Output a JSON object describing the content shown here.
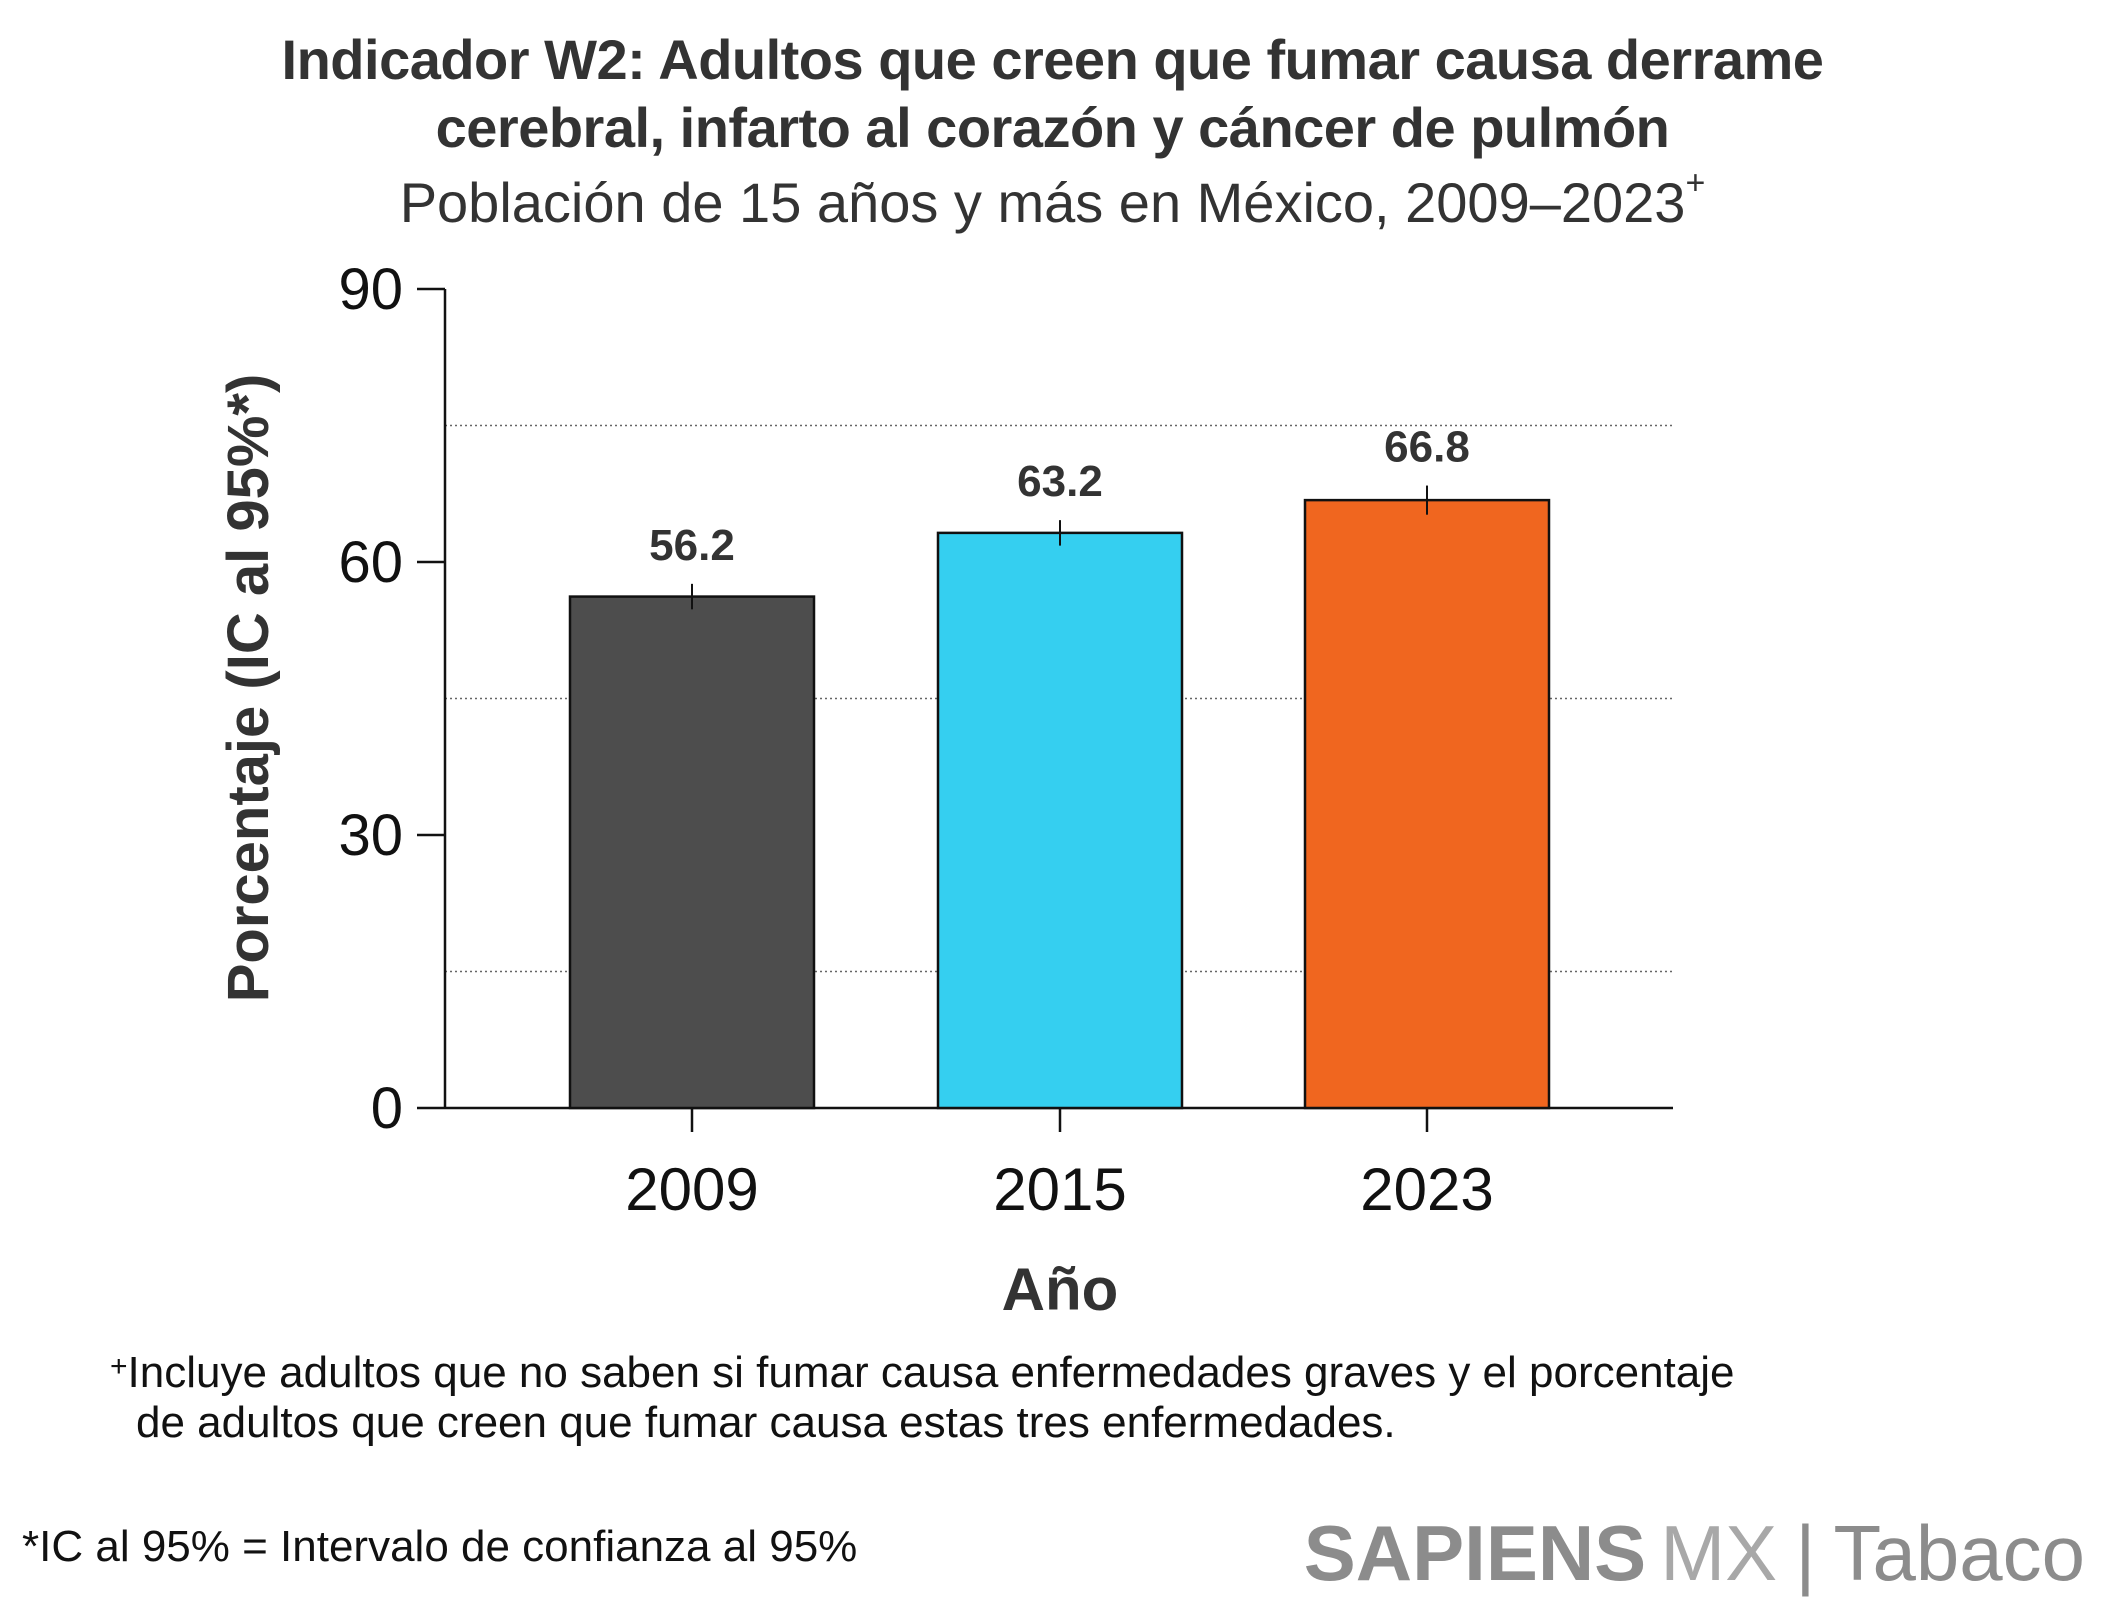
{
  "chart_data": {
    "type": "bar",
    "title": "Indicador W2: Adultos que creen que fumar causa derrame cerebral, infarto al corazón y cáncer de pulmón",
    "title_line1": "Indicador W2: Adultos que creen que fumar causa derrame",
    "title_line2": "cerebral, infarto al corazón y cáncer de pulmón",
    "subtitle": "Población de 15 años y más en México, 2009–2023",
    "subtitle_mark": "+",
    "categories": [
      "2009",
      "2015",
      "2023"
    ],
    "values": [
      56.2,
      63.2,
      66.8
    ],
    "value_labels": [
      "56.2",
      "63.2",
      "66.8"
    ],
    "ci_low": [
      54.8,
      61.8,
      65.2
    ],
    "ci_high": [
      57.6,
      64.6,
      68.4
    ],
    "colors": [
      "#4d4d4d",
      "#35cff0",
      "#f0661f"
    ],
    "xlabel": "Año",
    "ylabel": "Porcentaje (IC al 95%*)",
    "ylim": [
      0,
      90
    ],
    "yticks": [
      0,
      30,
      60,
      90
    ],
    "ytick_labels": [
      "0",
      "30",
      "60",
      "90"
    ],
    "gridlines": [
      15,
      45,
      75
    ],
    "legend": "none"
  },
  "footnotes": {
    "mark": "+",
    "line1": "Incluye adultos que no saben si fumar causa enfermedades graves y el porcentaje",
    "line2": "de adultos que creen que fumar causa estas tres enfermedades.",
    "ci_note": "*IC al 95% = Intervalo de confianza al 95%"
  },
  "brand": {
    "name": "SAPIENS",
    "suffix": "MX",
    "separator": "|",
    "section": "Tabaco"
  }
}
